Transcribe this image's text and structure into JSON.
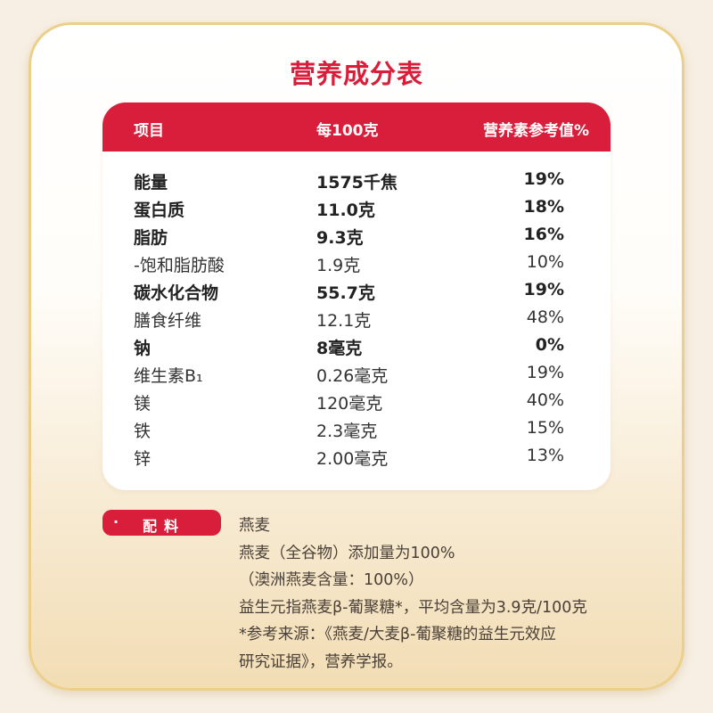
{
  "title": "营养成分表",
  "table": {
    "headers": [
      "项目",
      "每100克",
      "营养素参考值%"
    ],
    "rows": [
      {
        "name": "能量",
        "amount": "1575千焦",
        "nrv": "19%",
        "bold": true
      },
      {
        "name": "蛋白质",
        "amount": "11.0克",
        "nrv": "18%",
        "bold": true
      },
      {
        "name": "脂肪",
        "amount": "9.3克",
        "nrv": "16%",
        "bold": true
      },
      {
        "name": "-饱和脂肪酸",
        "amount": "1.9克",
        "nrv": "10%",
        "bold": false
      },
      {
        "name": "碳水化合物",
        "amount": "55.7克",
        "nrv": "19%",
        "bold": true
      },
      {
        "name": "膳食纤维",
        "amount": "12.1克",
        "nrv": "48%",
        "bold": false
      },
      {
        "name": "钠",
        "amount": "8毫克",
        "nrv": "0%",
        "bold": true
      },
      {
        "name": "维生素B₁",
        "amount": "0.26毫克",
        "nrv": "19%",
        "bold": false
      },
      {
        "name": "镁",
        "amount": "120毫克",
        "nrv": "40%",
        "bold": false
      },
      {
        "name": "铁",
        "amount": "2.3毫克",
        "nrv": "15%",
        "bold": false
      },
      {
        "name": "锌",
        "amount": "2.00毫克",
        "nrv": "13%",
        "bold": false
      }
    ]
  },
  "ingredients": {
    "badge_dot": "·",
    "label": "配料",
    "lines": [
      "燕麦",
      "燕麦（全谷物）添加量为100%",
      "（澳洲燕麦含量：100%）",
      "益生元指燕麦β-葡聚糖*，平均含量为3.9克/100克",
      "*参考来源：《燕麦/大麦β-葡聚糖的益生元效应",
      "研究证据》，营养学报。"
    ]
  },
  "colors": {
    "accent": "#d81e3a",
    "border": "#ecd08a"
  }
}
